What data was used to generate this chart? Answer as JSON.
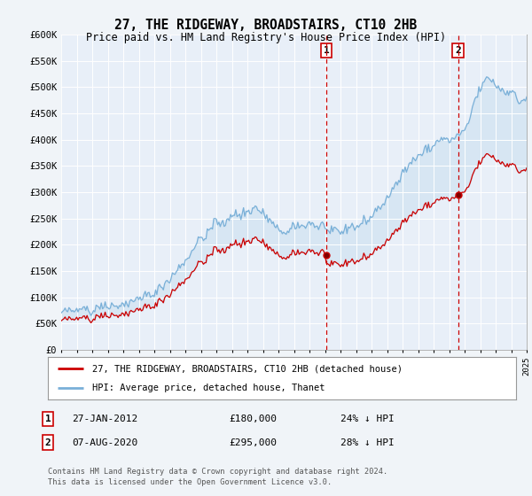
{
  "title": "27, THE RIDGEWAY, BROADSTAIRS, CT10 2HB",
  "subtitle": "Price paid vs. HM Land Registry's House Price Index (HPI)",
  "background_color": "#f0f4f8",
  "plot_bg_color": "#e8eff8",
  "ylim": [
    0,
    600000
  ],
  "yticks": [
    0,
    50000,
    100000,
    150000,
    200000,
    250000,
    300000,
    350000,
    400000,
    450000,
    500000,
    550000,
    600000
  ],
  "ytick_labels": [
    "£0",
    "£50K",
    "£100K",
    "£150K",
    "£200K",
    "£250K",
    "£300K",
    "£350K",
    "£400K",
    "£450K",
    "£500K",
    "£550K",
    "£600K"
  ],
  "hpi_color": "#7ab0d8",
  "price_color": "#cc0000",
  "vline_color": "#cc0000",
  "sale1_year": 2012.08,
  "sale1_price": 180000,
  "sale2_year": 2020.58,
  "sale2_price": 295000,
  "legend_label1": "27, THE RIDGEWAY, BROADSTAIRS, CT10 2HB (detached house)",
  "legend_label2": "HPI: Average price, detached house, Thanet",
  "footer1": "Contains HM Land Registry data © Crown copyright and database right 2024.",
  "footer2": "This data is licensed under the Open Government Licence v3.0.",
  "note1_date": "27-JAN-2012",
  "note1_price": "£180,000",
  "note1_pct": "24% ↓ HPI",
  "note2_date": "07-AUG-2020",
  "note2_price": "£295,000",
  "note2_pct": "28% ↓ HPI"
}
